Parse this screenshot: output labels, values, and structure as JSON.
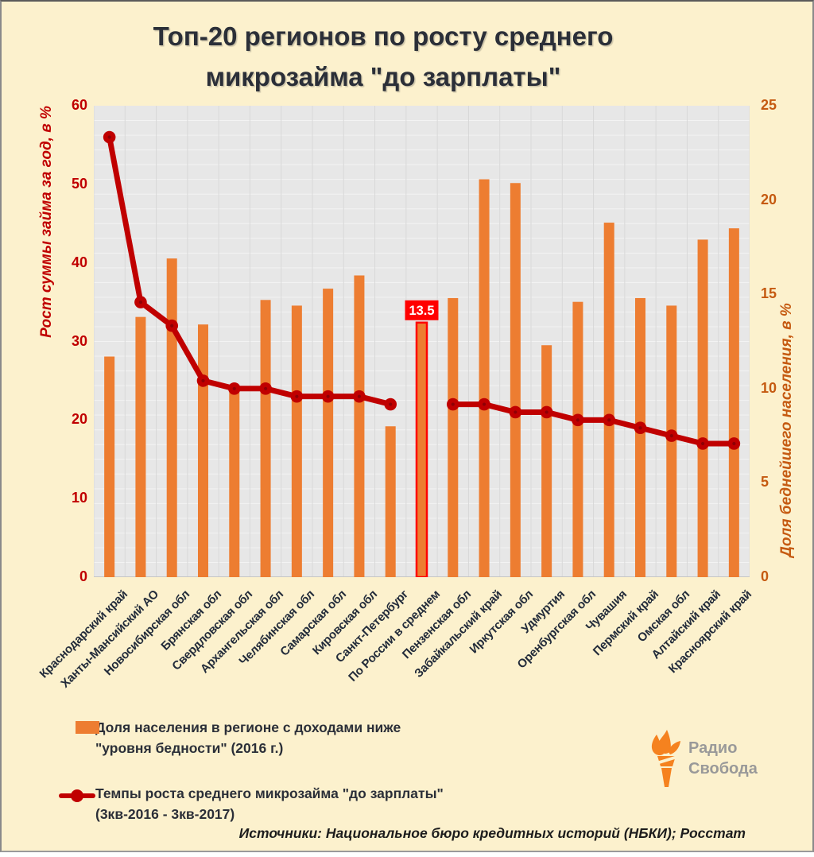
{
  "title": "Топ-20 регионов по росту среднего микрозайма \"до зарплаты\"",
  "colors": {
    "background": "#FCF1CD",
    "title_text": "#2B2F38",
    "bar": "#ED7D31",
    "line": "#C00000",
    "left_axis": "#C00000",
    "right_axis": "#C55A11",
    "x_labels": "#222B3A",
    "plot_bg": "#E7E7E7",
    "v_grid": "#D8D8D8",
    "h_grid": "#F3F3F3",
    "highlight_red": "#FF0000",
    "logo_orange": "#F5821F",
    "logo_gray": "#999999"
  },
  "chart_data": {
    "type": "combo bar+line",
    "categories": [
      "Краснодарский край",
      "Ханты-Мансийский АО",
      "Новосибирская обл",
      "Брянская обл",
      "Свердловская обл",
      "Архангельская обл",
      "Челябинская обл",
      "Самарская обл",
      "Кировская обл",
      "Санкт-Петербург",
      "По России в среднем",
      "Пензенская обл",
      "Забайкальский край",
      "Иркутская обл",
      "Удмуртия",
      "Оренбургская обл",
      "Чувашия",
      "Пермский край",
      "Омская обл",
      "Алтайский край",
      "Красноярский край"
    ],
    "series": [
      {
        "name": "Доля населения в регионе с доходами ниже \"уровня бедности\" (2016 г.)",
        "type": "bar",
        "axis": "right",
        "values": [
          11.7,
          13.8,
          16.9,
          13.4,
          10.0,
          14.7,
          14.4,
          15.3,
          16.0,
          8.0,
          13.5,
          14.8,
          21.1,
          20.9,
          12.3,
          14.6,
          18.8,
          14.8,
          14.4,
          17.9,
          18.5
        ]
      },
      {
        "name": "Темпы роста среднего микрозайма \"до зарплаты\" (3кв-2016 - 3кв-2017)",
        "type": "line",
        "axis": "left",
        "values": [
          56,
          35,
          32,
          25,
          24,
          24,
          23,
          23,
          23,
          22,
          null,
          22,
          22,
          21,
          21,
          20,
          20,
          19,
          18,
          17,
          17
        ]
      }
    ],
    "left_axis": {
      "label": "Рост суммы займа за год, в %",
      "min": 0,
      "max": 60,
      "ticks": [
        0,
        10,
        20,
        30,
        40,
        50,
        60
      ]
    },
    "right_axis": {
      "label": "Доля беднейшего населения, в %",
      "min": 0,
      "max": 25,
      "ticks": [
        0,
        5,
        10,
        15,
        20,
        25
      ]
    },
    "highlight": {
      "category_index": 10,
      "annotation": "13.5"
    },
    "grid": {
      "h_divisions": 32,
      "v_per_category": true
    },
    "legend_position": "bottom-left"
  },
  "legend": {
    "items": [
      {
        "line1": "Доля населения в регионе с доходами ниже",
        "line2": "\"уровня бедности\" (2016 г.)"
      },
      {
        "line1": "Темпы роста среднего микрозайма \"до зарплаты\"",
        "line2": "(3кв-2016 - 3кв-2017)"
      }
    ]
  },
  "footer": {
    "source": "Источники: Национальное бюро кредитных историй (НБКИ); Росстат"
  },
  "logo": {
    "line1": "Радио",
    "line2": "Свобода"
  }
}
